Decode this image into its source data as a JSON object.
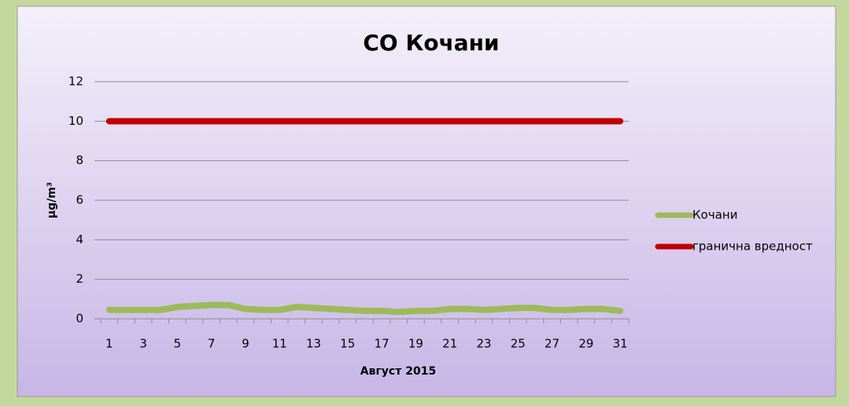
{
  "chart_data": {
    "type": "line",
    "title": "CO Кочани",
    "x_label": "Август 2015",
    "y_label": "μg/m³",
    "categories": [
      "1",
      null,
      "3",
      null,
      "5",
      null,
      "7",
      null,
      "9",
      null,
      "11",
      null,
      "13",
      null,
      "15",
      null,
      "17",
      null,
      "19",
      null,
      "21",
      null,
      "23",
      null,
      "25",
      null,
      "27",
      null,
      "29",
      null,
      "31"
    ],
    "series": [
      {
        "name": "Кочани",
        "color": "#9bbb59",
        "values": [
          0.45,
          0.45,
          0.45,
          0.45,
          0.6,
          0.65,
          0.7,
          0.7,
          0.5,
          0.45,
          0.45,
          0.6,
          0.55,
          0.5,
          0.45,
          0.4,
          0.4,
          0.35,
          0.4,
          0.4,
          0.5,
          0.5,
          0.45,
          0.5,
          0.55,
          0.55,
          0.45,
          0.45,
          0.5,
          0.5,
          0.4
        ]
      },
      {
        "name": "гранична вредност",
        "color": "#c00000",
        "values": [
          10,
          10,
          10,
          10,
          10,
          10,
          10,
          10,
          10,
          10,
          10,
          10,
          10,
          10,
          10,
          10,
          10,
          10,
          10,
          10,
          10,
          10,
          10,
          10,
          10,
          10,
          10,
          10,
          10,
          10,
          10
        ]
      }
    ],
    "ylim": [
      0,
      12
    ],
    "yticks": [
      0,
      2,
      4,
      6,
      8,
      10,
      12
    ],
    "grid": true,
    "legend": "right"
  }
}
